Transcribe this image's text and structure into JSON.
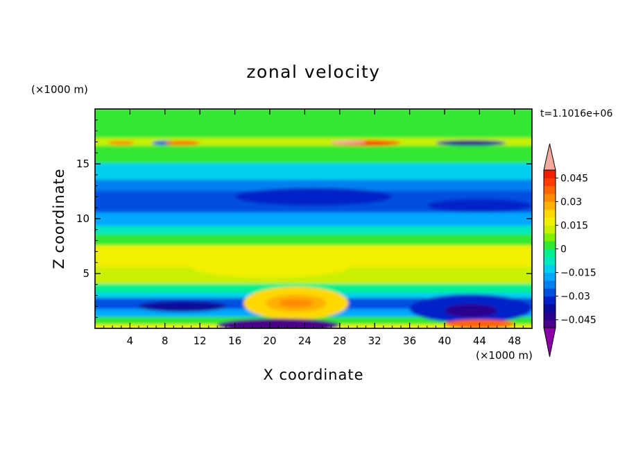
{
  "chart_data": {
    "type": "heatmap",
    "title": "zonal velocity",
    "xlabel": "X coordinate",
    "ylabel": "Z coordinate",
    "x_unit": "(×1000 m)",
    "y_unit": "(×1000 m)",
    "time_label": "t=1.1016e+06",
    "xlim": [
      0,
      50
    ],
    "ylim": [
      0,
      20
    ],
    "x_ticks": [
      4,
      8,
      12,
      16,
      20,
      24,
      28,
      32,
      36,
      40,
      44,
      48
    ],
    "y_ticks": [
      5,
      10,
      15
    ],
    "colorbar": {
      "levels": [
        -0.05,
        -0.045,
        -0.04,
        -0.035,
        -0.03,
        -0.025,
        -0.02,
        -0.015,
        -0.01,
        -0.005,
        0,
        0.005,
        0.01,
        0.015,
        0.02,
        0.025,
        0.03,
        0.035,
        0.04,
        0.045,
        0.05
      ],
      "tick_values": [
        -0.045,
        -0.03,
        -0.015,
        0,
        0.015,
        0.03,
        0.045
      ],
      "tick_labels": [
        "−0.045",
        "−0.03",
        "−0.015",
        "0",
        "0.015",
        "0.03",
        "0.045"
      ],
      "colors": [
        "#4b008a",
        "#2a008f",
        "#0a0a9b",
        "#0020c8",
        "#0050e0",
        "#0080f0",
        "#00a8ff",
        "#00d0ee",
        "#00e8c0",
        "#00f090",
        "#30e830",
        "#80f000",
        "#c8f000",
        "#f0f000",
        "#ffd800",
        "#ffb000",
        "#ff8c00",
        "#ff6400",
        "#ff3c00",
        "#f01e00"
      ],
      "under_color": "#8b00a8",
      "over_color": "#f4a9a0"
    },
    "bands": [
      {
        "z": [
          18,
          20
        ],
        "value": 0.0
      },
      {
        "z": [
          17.3,
          18
        ],
        "value": 0.003
      },
      {
        "z": [
          16.6,
          17.3
        ],
        "value": 0.012
      },
      {
        "z": [
          15,
          16.6
        ],
        "value": 0.004
      },
      {
        "z": [
          13.5,
          15
        ],
        "value": -0.012
      },
      {
        "z": [
          12.5,
          13.5
        ],
        "value": -0.022
      },
      {
        "z": [
          10.5,
          12.5
        ],
        "value": -0.028
      },
      {
        "z": [
          9.3,
          10.5
        ],
        "value": -0.02
      },
      {
        "z": [
          8.5,
          9.3
        ],
        "value": -0.01
      },
      {
        "z": [
          7.5,
          8.5
        ],
        "value": 0.002
      },
      {
        "z": [
          5.5,
          7.5
        ],
        "value": 0.015
      },
      {
        "z": [
          4,
          5.5
        ],
        "value": 0.012
      },
      {
        "z": [
          3.2,
          4
        ],
        "value": -0.004
      },
      {
        "z": [
          2.7,
          3.2
        ],
        "value": -0.015
      },
      {
        "z": [
          1.7,
          2.7
        ],
        "value": -0.03
      },
      {
        "z": [
          1,
          1.7
        ],
        "value": -0.018
      },
      {
        "z": [
          0.3,
          1
        ],
        "value": 0.003
      },
      {
        "z": [
          0,
          0.3
        ],
        "value": 0.015
      }
    ],
    "features": [
      {
        "x": 23,
        "z": 2.3,
        "rx": 6,
        "rz": 1.5,
        "value": 0.02
      },
      {
        "x": 23,
        "z": 2.3,
        "rx": 3.5,
        "rz": 0.8,
        "value": 0.025
      },
      {
        "x": 23,
        "z": 2.3,
        "rx": 2,
        "rz": 0.4,
        "value": 0.03
      },
      {
        "x": 43,
        "z": 1.8,
        "rx": 7,
        "rz": 1.3,
        "value": -0.035
      },
      {
        "x": 43,
        "z": 1.6,
        "rx": 3,
        "rz": 0.6,
        "value": -0.045
      },
      {
        "x": 21,
        "z": 0.3,
        "rx": 7,
        "rz": 0.6,
        "value": -0.05
      },
      {
        "x": 44,
        "z": 0.4,
        "rx": 4,
        "rz": 0.4,
        "value": 0.035
      },
      {
        "x": 31,
        "z": 16.9,
        "rx": 4,
        "rz": 0.25,
        "value": 0.04
      },
      {
        "x": 29,
        "z": 16.95,
        "rx": 2,
        "rz": 0.15,
        "value": 0.05
      },
      {
        "x": 43,
        "z": 16.9,
        "rx": 4,
        "rz": 0.25,
        "value": -0.04
      },
      {
        "x": 43,
        "z": 16.9,
        "rx": 2,
        "rz": 0.12,
        "value": -0.05
      },
      {
        "x": 8,
        "z": 16.9,
        "rx": 1.5,
        "rz": 0.2,
        "value": -0.03
      },
      {
        "x": 10,
        "z": 16.9,
        "rx": 2,
        "rz": 0.2,
        "value": 0.035
      },
      {
        "x": 3,
        "z": 16.9,
        "rx": 1.5,
        "rz": 0.2,
        "value": 0.03
      },
      {
        "x": 25,
        "z": 12,
        "rx": 9,
        "rz": 0.8,
        "value": -0.032
      },
      {
        "x": 44,
        "z": 11.2,
        "rx": 6,
        "rz": 0.6,
        "value": -0.032
      },
      {
        "x": 20,
        "z": 5.6,
        "rx": 9,
        "rz": 1.0,
        "value": 0.018
      },
      {
        "x": 10,
        "z": 2.0,
        "rx": 5,
        "rz": 0.5,
        "value": -0.036
      }
    ]
  }
}
